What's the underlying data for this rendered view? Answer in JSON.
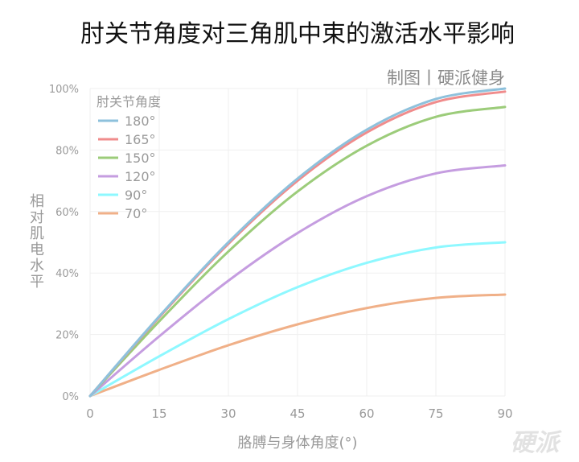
{
  "chart_data": {
    "type": "line",
    "title": "肘关节角度对三角肌中束的激活水平影响",
    "credit": "制图丨硬派健身",
    "xlabel": "胳膊与身体角度(°)",
    "ylabel": "相对肌电水平",
    "xlim": [
      0,
      90
    ],
    "ylim": [
      0,
      100
    ],
    "x_ticks": [
      "0",
      "15",
      "30",
      "45",
      "60",
      "75",
      "90"
    ],
    "y_ticks": [
      "0%",
      "20%",
      "40%",
      "60%",
      "80%",
      "100%"
    ],
    "grid": true,
    "legend_title": "肘关节角度",
    "legend_position": "top-left",
    "x": [
      0,
      15,
      30,
      45,
      60,
      75,
      90
    ],
    "series": [
      {
        "name": "180°",
        "color": "#8ec1dc",
        "values": [
          0,
          25.9,
          50.0,
          70.7,
          86.6,
          96.6,
          100
        ]
      },
      {
        "name": "165°",
        "color": "#f08c8c",
        "values": [
          0,
          25.6,
          49.5,
          70.0,
          85.7,
          95.6,
          99
        ]
      },
      {
        "name": "150°",
        "color": "#9ccc7a",
        "values": [
          0,
          24.3,
          47.0,
          66.5,
          81.4,
          90.8,
          94
        ]
      },
      {
        "name": "120°",
        "color": "#c59de0",
        "values": [
          0,
          19.4,
          37.5,
          53.0,
          65.0,
          72.4,
          75
        ]
      },
      {
        "name": "90°",
        "color": "#8ef8ff",
        "values": [
          0,
          12.9,
          25.0,
          35.4,
          43.3,
          48.3,
          50
        ]
      },
      {
        "name": "70°",
        "color": "#f0b088",
        "values": [
          0,
          8.5,
          16.5,
          23.3,
          28.6,
          31.9,
          33
        ]
      }
    ]
  },
  "watermark": "硬派"
}
